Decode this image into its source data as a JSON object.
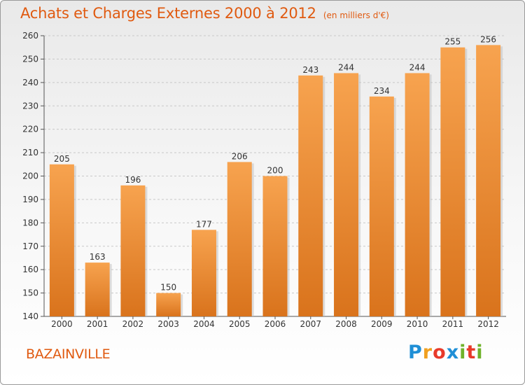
{
  "chart_data": {
    "type": "bar",
    "title": "Achats et Charges Externes 2000 à 2012",
    "subtitle": "(en milliers d'€)",
    "xlabel": "",
    "ylabel": "",
    "categories": [
      "2000",
      "2001",
      "2002",
      "2003",
      "2004",
      "2005",
      "2006",
      "2007",
      "2008",
      "2009",
      "2010",
      "2011",
      "2012"
    ],
    "values": [
      205,
      163,
      196,
      150,
      177,
      206,
      200,
      243,
      244,
      234,
      244,
      255,
      256
    ],
    "ylim": [
      140,
      260
    ],
    "yticks": [
      140,
      150,
      160,
      170,
      180,
      190,
      200,
      210,
      220,
      230,
      240,
      250,
      260
    ],
    "grid": "horizontal dashed",
    "legend": "none",
    "bar_color": "#f0932f",
    "accent_color": "#e05a10"
  },
  "footer": {
    "place": "BAZAINVILLE",
    "logo": "Proxiti"
  }
}
